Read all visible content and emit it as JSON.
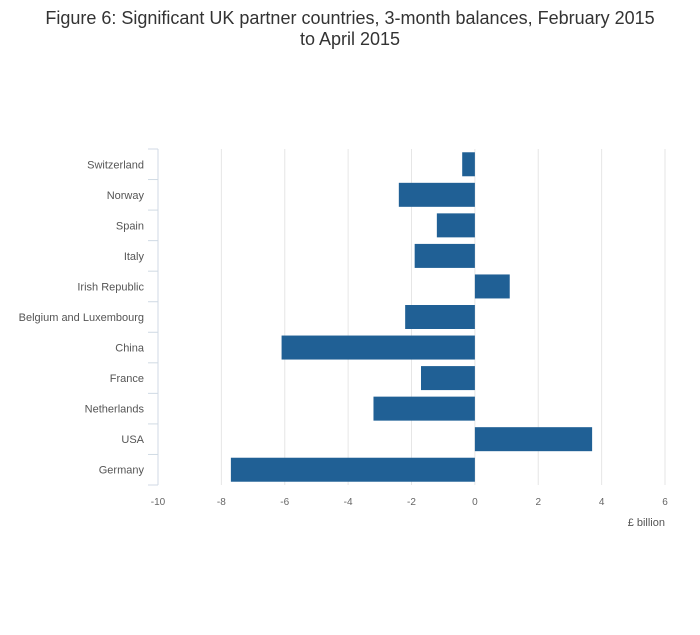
{
  "chart_data": {
    "type": "bar",
    "orientation": "horizontal",
    "title_line1": "Figure 6: Significant UK partner countries, 3-month balances, February 2015",
    "title_line2": "to April 2015",
    "xlabel": "£ billion",
    "ylabel": "",
    "xlim": [
      -10,
      6
    ],
    "xticks": [
      -10,
      -8,
      -6,
      -4,
      -2,
      0,
      2,
      4,
      6
    ],
    "xtick_labels": [
      "-10",
      "-8",
      "-6",
      "-4",
      "-2",
      "0",
      "2",
      "4",
      "6"
    ],
    "grid": true,
    "categories": [
      "Switzerland",
      "Norway",
      "Spain",
      "Italy",
      "Irish Republic",
      "Belgium and Luxembourg",
      "China",
      "France",
      "Netherlands",
      "USA",
      "Germany"
    ],
    "values": [
      -0.4,
      -2.4,
      -1.2,
      -1.9,
      1.1,
      -2.2,
      -6.1,
      -1.7,
      -3.2,
      3.7,
      -7.7
    ],
    "colors": {
      "bar": "#206095",
      "grid": "#e6e6e6",
      "axis": "#d0dae4"
    }
  }
}
